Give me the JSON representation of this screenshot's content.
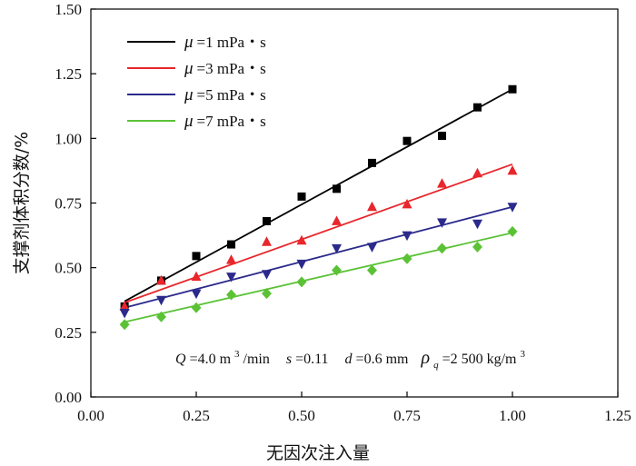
{
  "chart_data": {
    "type": "scatter",
    "xlabel": "无因次注入量",
    "ylabel": "支撑剂体积分数/%",
    "xlim": [
      0.0,
      1.25
    ],
    "ylim": [
      0.0,
      1.5
    ],
    "x_ticks": [
      "0.00",
      "0.25",
      "0.50",
      "0.75",
      "1.00",
      "1.25"
    ],
    "y_ticks": [
      "0.00",
      "0.25",
      "0.50",
      "0.75",
      "1.00",
      "1.25",
      "1.50"
    ],
    "grid": false,
    "legend_position": "top-left",
    "annotation": {
      "Q_label": "Q",
      "Q_value": "=4.0 m",
      "Q_exp": "3",
      "Q_unit": "/min",
      "s_label": "s",
      "s_value": "=0.11",
      "d_label": "d",
      "d_value": "=0.6 mm",
      "rho_label": "ρ",
      "rho_sub": "q",
      "rho_value": "=2 500 kg/m",
      "rho_exp": "3"
    },
    "series": [
      {
        "name": "μ=1 mPa・s",
        "mu": "μ",
        "label": "=1 mPa・s",
        "color": "#000000",
        "marker": "square",
        "fit": [
          [
            0.08,
            0.37
          ],
          [
            1.0,
            1.19
          ]
        ],
        "points": [
          [
            0.08,
            0.35
          ],
          [
            0.167,
            0.45
          ],
          [
            0.25,
            0.545
          ],
          [
            0.333,
            0.59
          ],
          [
            0.417,
            0.68
          ],
          [
            0.5,
            0.775
          ],
          [
            0.583,
            0.805
          ],
          [
            0.667,
            0.905
          ],
          [
            0.75,
            0.99
          ],
          [
            0.833,
            1.01
          ],
          [
            0.917,
            1.12
          ],
          [
            1.0,
            1.19
          ]
        ]
      },
      {
        "name": "μ=3 mPa・s",
        "mu": "μ",
        "label": "=3 mPa・s",
        "color": "#e8262b",
        "marker": "triangle-up",
        "fit": [
          [
            0.08,
            0.365
          ],
          [
            1.0,
            0.9
          ]
        ],
        "points": [
          [
            0.08,
            0.35
          ],
          [
            0.167,
            0.45
          ],
          [
            0.25,
            0.465
          ],
          [
            0.333,
            0.53
          ],
          [
            0.417,
            0.6
          ],
          [
            0.5,
            0.605
          ],
          [
            0.583,
            0.68
          ],
          [
            0.667,
            0.735
          ],
          [
            0.75,
            0.745
          ],
          [
            0.833,
            0.825
          ],
          [
            0.917,
            0.865
          ],
          [
            1.0,
            0.875
          ]
        ]
      },
      {
        "name": "μ=5 mPa・s",
        "mu": "μ",
        "label": "=5 mPa・s",
        "color": "#2b2a8c",
        "marker": "triangle-down",
        "fit": [
          [
            0.08,
            0.345
          ],
          [
            1.0,
            0.735
          ]
        ],
        "points": [
          [
            0.08,
            0.325
          ],
          [
            0.167,
            0.375
          ],
          [
            0.25,
            0.4
          ],
          [
            0.333,
            0.465
          ],
          [
            0.417,
            0.475
          ],
          [
            0.5,
            0.515
          ],
          [
            0.583,
            0.575
          ],
          [
            0.667,
            0.58
          ],
          [
            0.75,
            0.625
          ],
          [
            0.833,
            0.675
          ],
          [
            0.917,
            0.67
          ],
          [
            1.0,
            0.735
          ]
        ]
      },
      {
        "name": "μ=7 mPa・s",
        "mu": "μ",
        "label": "=7 mPa・s",
        "color": "#5bc236",
        "marker": "diamond",
        "fit": [
          [
            0.08,
            0.29
          ],
          [
            1.0,
            0.635
          ]
        ],
        "points": [
          [
            0.08,
            0.28
          ],
          [
            0.167,
            0.31
          ],
          [
            0.25,
            0.345
          ],
          [
            0.333,
            0.395
          ],
          [
            0.417,
            0.4
          ],
          [
            0.5,
            0.445
          ],
          [
            0.583,
            0.49
          ],
          [
            0.667,
            0.49
          ],
          [
            0.75,
            0.535
          ],
          [
            0.833,
            0.575
          ],
          [
            0.917,
            0.58
          ],
          [
            1.0,
            0.64
          ]
        ]
      }
    ]
  }
}
